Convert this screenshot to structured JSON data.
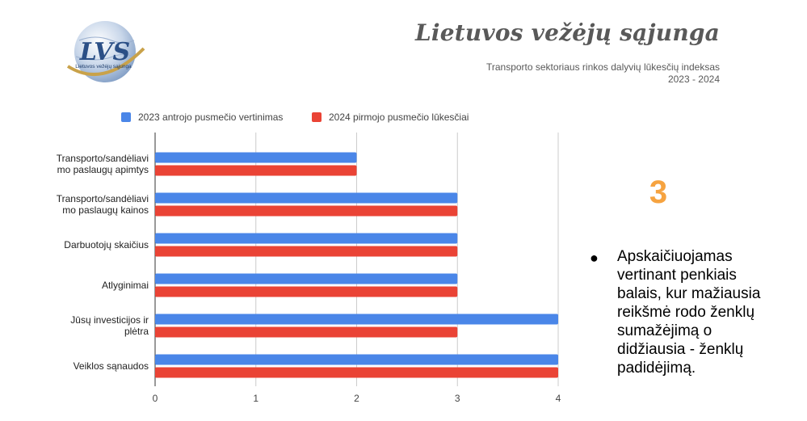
{
  "brand": {
    "title": "Lietuvos vežėjų sąjunga",
    "logo_text": "LVS",
    "logo_caption": "Lietuvos vežėjų sąjunga"
  },
  "subtitle": {
    "line1": "Transporto sektoriaus rinkos dalyvių lūkesčių indeksas",
    "line2": "2023 - 2024"
  },
  "legend": {
    "series1": "2023 antrojo pusmečio vertinimas",
    "series2": "2024 pirmojo pusmečio lūkesčiai"
  },
  "colors": {
    "series1": "#4a86e8",
    "series2": "#ea4335",
    "accent": "#f6a340",
    "grid": "#cccccc"
  },
  "chart_data": {
    "type": "bar",
    "orientation": "horizontal",
    "categories": [
      [
        "Transporto/sandėliavi",
        "mo paslaugų apimtys"
      ],
      [
        "Transporto/sandėliavi",
        "mo paslaugų kainos"
      ],
      [
        "Darbuotojų skaičius"
      ],
      [
        "Atlyginimai"
      ],
      [
        "Jūsų investicijos ir",
        "plėtra"
      ],
      [
        "Veiklos sąnaudos"
      ]
    ],
    "series": [
      {
        "name": "2023 antrojo pusmečio vertinimas",
        "values": [
          2,
          3,
          3,
          3,
          4,
          4
        ]
      },
      {
        "name": "2024 pirmojo pusmečio lūkesčiai",
        "values": [
          2,
          3,
          3,
          3,
          3,
          4
        ]
      }
    ],
    "xlim": [
      0,
      4
    ],
    "xticks": [
      "0",
      "1",
      "2",
      "3",
      "4"
    ],
    "grid": true,
    "legend_position": "top-left"
  },
  "side_panel": {
    "number": "3",
    "bullet": "Apskaičiuojamas vertinant penkiais balais, kur mažiausia reikšmė rodo ženklų sumažėjimą o didžiausia - ženklų padidėjimą."
  }
}
